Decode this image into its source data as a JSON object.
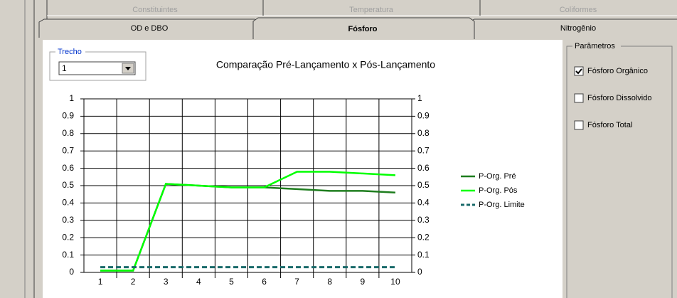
{
  "tabs_top": [
    "Constituintes",
    "Temperatura",
    "Coliformes"
  ],
  "tabs": [
    "OD e DBO",
    "Fósforo",
    "Nitrogênio"
  ],
  "trecho": {
    "label": "Trecho",
    "value": "1"
  },
  "chart_data": {
    "type": "line",
    "title": "Comparação Pré-Lançamento  x  Pós-Lançamento",
    "categories": [
      "1",
      "2",
      "3",
      "4",
      "5",
      "6",
      "7",
      "8",
      "9",
      "10"
    ],
    "series": [
      {
        "name": "P-Org. Pré",
        "color": "#1e7d1e",
        "values": [
          0.01,
          0.01,
          0.51,
          0.5,
          0.49,
          0.49,
          0.48,
          0.47,
          0.47,
          0.46
        ]
      },
      {
        "name": "P-Org. Pós",
        "color": "#00ff00",
        "values": [
          0.01,
          0.01,
          0.51,
          0.5,
          0.49,
          0.49,
          0.58,
          0.58,
          0.57,
          0.56
        ]
      },
      {
        "name": "P-Org. Limite",
        "color": "#1a6a6a",
        "dashed": true,
        "values": [
          0.03,
          0.03,
          0.03,
          0.03,
          0.03,
          0.03,
          0.03,
          0.03,
          0.03,
          0.03
        ]
      }
    ],
    "ylim": [
      0,
      1
    ],
    "yticks": [
      0,
      0.1,
      0.2,
      0.3,
      0.4,
      0.5,
      0.6,
      0.7,
      0.8,
      0.9,
      1
    ],
    "y2lim": [
      0,
      1
    ],
    "y2ticks": [
      0,
      0.1,
      0.2,
      0.3,
      0.4,
      0.5,
      0.6,
      0.7,
      0.8,
      0.9,
      1
    ],
    "grid": true
  },
  "parametros": {
    "title": "Parâmetros",
    "options": [
      {
        "label": "Fósforo Orgânico",
        "checked": true
      },
      {
        "label": "Fósforo Dissolvido",
        "checked": false
      },
      {
        "label": "Fósforo  Total",
        "checked": false
      }
    ]
  }
}
